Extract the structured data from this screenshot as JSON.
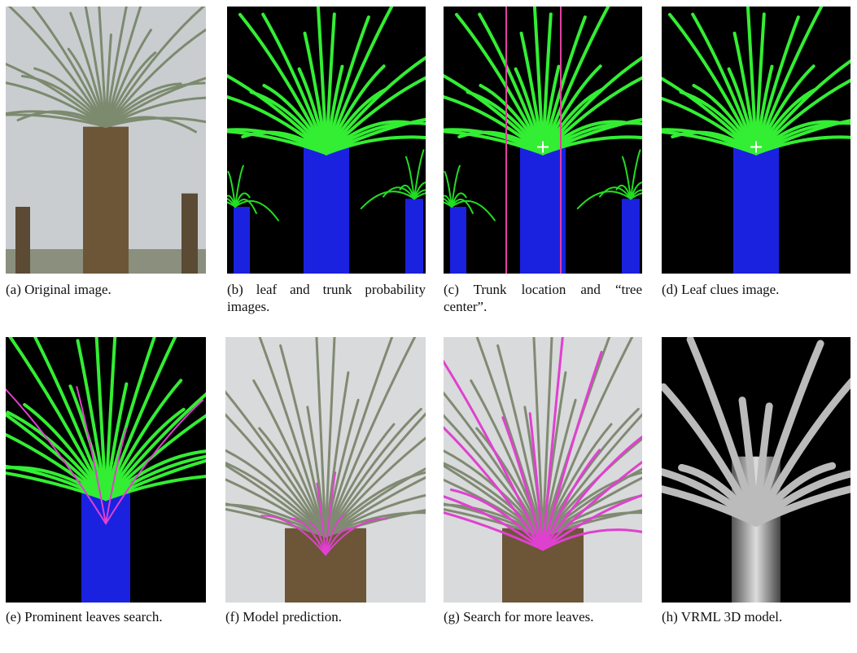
{
  "figure": {
    "panels": [
      {
        "caption": "(a) Original image."
      },
      {
        "caption": "(b) leaf and trunk probability images."
      },
      {
        "caption": "(c) Trunk location and “tree center”."
      },
      {
        "caption": "(d) Leaf clues image."
      },
      {
        "caption": "(e) Prominent leaves search."
      },
      {
        "caption": "(f) Model prediction."
      },
      {
        "caption": "(g) Search for more leaves."
      },
      {
        "caption": "(h) VRML 3D model."
      }
    ]
  }
}
